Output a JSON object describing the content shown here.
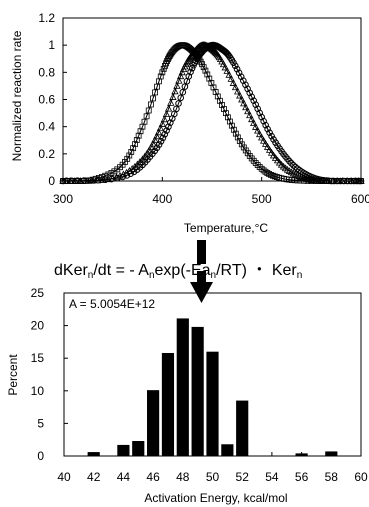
{
  "chart_data": [
    {
      "type": "line",
      "title": "",
      "xlabel": "Temperature,°C",
      "ylabel": "Normalized reaction rate",
      "xlim": [
        300,
        600
      ],
      "ylim": [
        0,
        1.2
      ],
      "xticks": [
        "300",
        "400",
        "500",
        "600"
      ],
      "yticks": [
        "0",
        "0.2",
        "0.4",
        "0.6",
        "0.8",
        "1",
        "1.2"
      ],
      "grid": false,
      "series": [
        {
          "marker": "square",
          "peak_x": 420,
          "x": [
            300,
            330,
            360,
            380,
            400,
            410,
            420,
            430,
            440,
            460,
            480,
            500,
            520,
            550,
            600
          ],
          "y": [
            0.0,
            0.01,
            0.12,
            0.4,
            0.8,
            0.95,
            1.0,
            0.96,
            0.86,
            0.56,
            0.27,
            0.09,
            0.02,
            0.0,
            0.0
          ]
        },
        {
          "marker": "triangle",
          "peak_x": 440,
          "x": [
            300,
            350,
            380,
            400,
            420,
            430,
            440,
            450,
            460,
            480,
            500,
            520,
            540,
            560,
            600
          ],
          "y": [
            0.0,
            0.02,
            0.16,
            0.42,
            0.8,
            0.93,
            1.0,
            0.97,
            0.88,
            0.6,
            0.32,
            0.12,
            0.03,
            0.0,
            0.0
          ]
        },
        {
          "marker": "circle",
          "peak_x": 450,
          "x": [
            300,
            360,
            390,
            410,
            430,
            440,
            450,
            460,
            470,
            490,
            510,
            530,
            550,
            570,
            600
          ],
          "y": [
            0.0,
            0.03,
            0.2,
            0.46,
            0.83,
            0.95,
            1.0,
            0.97,
            0.89,
            0.62,
            0.33,
            0.13,
            0.03,
            0.0,
            0.0
          ]
        }
      ]
    },
    {
      "type": "bar",
      "title": "",
      "xlabel": "Activation Energy, kcal/mol",
      "ylabel": "Percent",
      "xlim": [
        40,
        60
      ],
      "ylim": [
        0,
        25
      ],
      "xticks": [
        "40",
        "42",
        "44",
        "46",
        "48",
        "50",
        "52",
        "54",
        "56",
        "58",
        "60"
      ],
      "yticks": [
        "0",
        "5",
        "10",
        "15",
        "20",
        "25"
      ],
      "annotation": "A = 5.0054E+12",
      "grid": false,
      "categories": [
        42,
        44,
        45,
        46,
        47,
        48,
        49,
        50,
        51,
        52,
        56,
        58
      ],
      "values": [
        0.6,
        1.7,
        2.3,
        10.1,
        15.8,
        21.1,
        19.8,
        16.0,
        1.8,
        8.5,
        0.4,
        0.7
      ]
    }
  ],
  "equation": {
    "lhs_main": "dKer",
    "lhs_sub": "n",
    "lhs_rest": "/dt = - A",
    "a_sub": "n",
    "exp_open": "exp(-Ea",
    "ea_sub": "n",
    "exp_close": "/RT) ・ Ker",
    "ker_sub": "n"
  }
}
